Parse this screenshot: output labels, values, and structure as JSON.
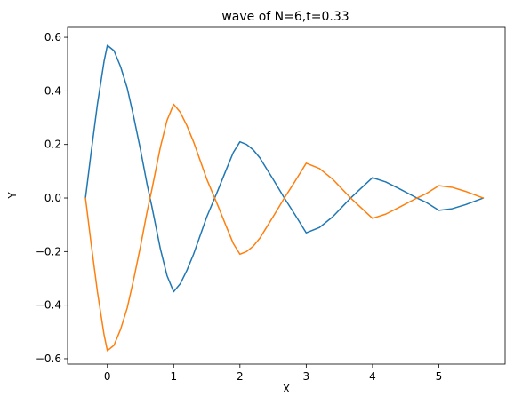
{
  "chart_data": {
    "type": "line",
    "title": "wave of N=6,t=0.33",
    "xlabel": "X",
    "ylabel": "Y",
    "xlim": [
      -0.6,
      6.0
    ],
    "ylim": [
      -0.62,
      0.64
    ],
    "grid": false,
    "legend": "none",
    "xticks": [
      0,
      1,
      2,
      3,
      4,
      5
    ],
    "xtick_labels": [
      "0",
      "1",
      "2",
      "3",
      "4",
      "5"
    ],
    "yticks": [
      -0.6,
      -0.4,
      -0.2,
      0.0,
      0.2,
      0.4,
      0.6
    ],
    "ytick_labels": [
      "−0.6",
      "−0.4",
      "−0.2",
      "0.0",
      "0.2",
      "0.4",
      "0.6"
    ],
    "series": [
      {
        "color": "#1f77b4",
        "x": [
          -0.33,
          -0.25,
          -0.15,
          -0.05,
          0.0,
          0.1,
          0.2,
          0.3,
          0.4,
          0.5,
          0.6,
          0.67,
          0.8,
          0.9,
          1.0,
          1.1,
          1.2,
          1.3,
          1.4,
          1.5,
          1.67,
          1.8,
          1.9,
          2.0,
          2.1,
          2.2,
          2.3,
          2.4,
          2.5,
          2.67,
          2.8,
          2.9,
          3.0,
          3.2,
          3.4,
          3.67,
          3.8,
          4.0,
          4.2,
          4.4,
          4.67,
          4.8,
          5.0,
          5.2,
          5.4,
          5.67
        ],
        "y": [
          0.0,
          0.16,
          0.35,
          0.51,
          0.57,
          0.55,
          0.49,
          0.41,
          0.3,
          0.18,
          0.05,
          -0.03,
          -0.19,
          -0.29,
          -0.35,
          -0.32,
          -0.27,
          -0.21,
          -0.14,
          -0.07,
          0.03,
          0.11,
          0.17,
          0.21,
          0.2,
          0.18,
          0.15,
          0.11,
          0.07,
          0.0,
          -0.05,
          -0.09,
          -0.13,
          -0.11,
          -0.07,
          0.0,
          0.03,
          0.076,
          0.06,
          0.035,
          0.0,
          -0.015,
          -0.046,
          -0.04,
          -0.025,
          0.0
        ]
      },
      {
        "color": "#ff7f0e",
        "x": [
          -0.33,
          -0.25,
          -0.15,
          -0.05,
          0.0,
          0.1,
          0.2,
          0.3,
          0.4,
          0.5,
          0.6,
          0.67,
          0.8,
          0.9,
          1.0,
          1.1,
          1.2,
          1.3,
          1.4,
          1.5,
          1.67,
          1.8,
          1.9,
          2.0,
          2.1,
          2.2,
          2.3,
          2.4,
          2.5,
          2.67,
          2.8,
          2.9,
          3.0,
          3.2,
          3.4,
          3.67,
          3.8,
          4.0,
          4.2,
          4.4,
          4.67,
          4.8,
          5.0,
          5.2,
          5.4,
          5.67
        ],
        "y": [
          0.0,
          -0.16,
          -0.35,
          -0.51,
          -0.57,
          -0.55,
          -0.49,
          -0.41,
          -0.3,
          -0.18,
          -0.05,
          0.03,
          0.19,
          0.29,
          0.35,
          0.32,
          0.27,
          0.21,
          0.14,
          0.07,
          -0.03,
          -0.11,
          -0.17,
          -0.21,
          -0.2,
          -0.18,
          -0.15,
          -0.11,
          -0.07,
          0.0,
          0.05,
          0.09,
          0.13,
          0.11,
          0.07,
          0.0,
          -0.03,
          -0.076,
          -0.06,
          -0.035,
          0.0,
          0.015,
          0.046,
          0.04,
          0.025,
          0.0
        ]
      }
    ]
  }
}
